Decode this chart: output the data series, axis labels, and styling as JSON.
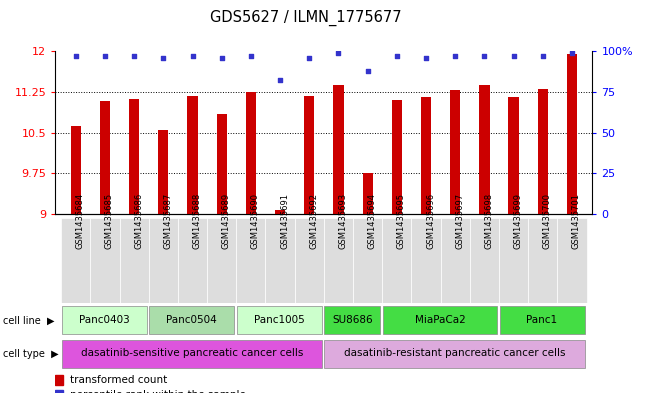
{
  "title": "GDS5627 / ILMN_1775677",
  "samples": [
    "GSM1435684",
    "GSM1435685",
    "GSM1435686",
    "GSM1435687",
    "GSM1435688",
    "GSM1435689",
    "GSM1435690",
    "GSM1435691",
    "GSM1435692",
    "GSM1435693",
    "GSM1435694",
    "GSM1435695",
    "GSM1435696",
    "GSM1435697",
    "GSM1435698",
    "GSM1435699",
    "GSM1435700",
    "GSM1435701"
  ],
  "bar_values": [
    10.62,
    11.08,
    11.12,
    10.55,
    11.17,
    10.85,
    11.25,
    9.08,
    11.18,
    11.38,
    9.75,
    11.1,
    11.15,
    11.28,
    11.38,
    11.15,
    11.3,
    11.95
  ],
  "percentile_values": [
    97,
    97,
    97,
    96,
    97,
    96,
    97,
    82,
    96,
    99,
    88,
    97,
    96,
    97,
    97,
    97,
    97,
    99
  ],
  "cell_lines": [
    {
      "label": "Panc0403",
      "start": 0,
      "end": 3,
      "color": "#ccffcc"
    },
    {
      "label": "Panc0504",
      "start": 3,
      "end": 6,
      "color": "#aaddaa"
    },
    {
      "label": "Panc1005",
      "start": 6,
      "end": 9,
      "color": "#ccffcc"
    },
    {
      "label": "SU8686",
      "start": 9,
      "end": 11,
      "color": "#44dd44"
    },
    {
      "label": "MiaPaCa2",
      "start": 11,
      "end": 15,
      "color": "#44dd44"
    },
    {
      "label": "Panc1",
      "start": 15,
      "end": 18,
      "color": "#44dd44"
    }
  ],
  "cell_types": [
    {
      "label": "dasatinib-sensitive pancreatic cancer cells",
      "start": 0,
      "end": 9,
      "color": "#dd55dd"
    },
    {
      "label": "dasatinib-resistant pancreatic cancer cells",
      "start": 9,
      "end": 18,
      "color": "#ddaadd"
    }
  ],
  "ylim": [
    9.0,
    12.0
  ],
  "yticks": [
    9.0,
    9.75,
    10.5,
    11.25,
    12.0
  ],
  "ytick_labels": [
    "9",
    "9.75",
    "10.5",
    "11.25",
    "12"
  ],
  "right_yticks": [
    0,
    25,
    50,
    75,
    100
  ],
  "right_ytick_labels": [
    "0",
    "25",
    "50",
    "75",
    "100%"
  ],
  "bar_color": "#cc0000",
  "dot_color": "#3333cc",
  "bar_width": 0.35
}
